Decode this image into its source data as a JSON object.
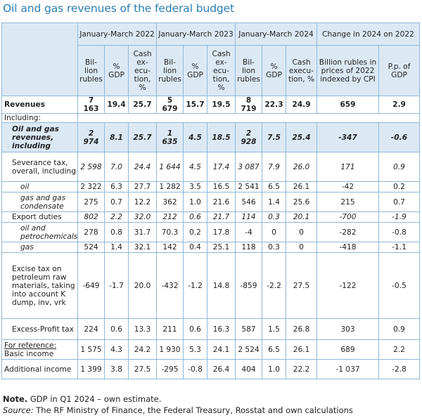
{
  "title": "Oil and gas revenues of the federal budget",
  "header": {
    "periods": [
      "January-March 2022",
      "January-March 2023",
      "January-March 2024"
    ],
    "change": "Change in 2024 on 2022",
    "sub": [
      "Bil-lion rubles",
      "% GDP",
      "Cash ex-ecu-tion, %",
      "Bil-lion rubles",
      "% GDP",
      "Cash ex-ecu-tion, %",
      "Bil-lion rubles",
      "% GDP",
      "Cash execu-tion, %",
      "Billion rubles in prices of 2022 indexed by CPI",
      "P.p. of GDP"
    ]
  },
  "rows": [
    {
      "label": "Revenues",
      "values": [
        "7 163",
        "19.4",
        "25.7",
        "5 679",
        "15.7",
        "19.5",
        "8 719",
        "22.3",
        "24.9",
        "659",
        "2.9"
      ]
    },
    {
      "label": "Including:",
      "values": []
    },
    {
      "label": "Oil and gas revenues, including",
      "values": [
        "2 974",
        "8.1",
        "25.7",
        "1 635",
        "4.5",
        "18.5",
        "2 928",
        "7.5",
        "25.4",
        "-347",
        "-0.6"
      ]
    },
    {
      "label": "Severance tax, overall, including",
      "values": [
        "2 598",
        "7.0",
        "24.4",
        "1 644",
        "4.5",
        "17.4",
        "3 087",
        "7.9",
        "26.0",
        "171",
        "0.9"
      ]
    },
    {
      "label": "oil",
      "values": [
        "2 322",
        "6.3",
        "27.7",
        "1 282",
        "3.5",
        "16.5",
        "2 541",
        "6.5",
        "26.1",
        "-42",
        "0.2"
      ]
    },
    {
      "label": "gas and gas condensate",
      "values": [
        "275",
        "0.7",
        "12.2",
        "362",
        "1.0",
        "21.6",
        "546",
        "1.4",
        "25.6",
        "215",
        "0.7"
      ]
    },
    {
      "label": "Export duties",
      "values": [
        "802",
        "2.2",
        "32.0",
        "212",
        "0.6",
        "21.7",
        "114",
        "0.3",
        "20.1",
        "-700",
        "-1.9"
      ]
    },
    {
      "label": "oil and petrochemicals",
      "values": [
        "278",
        "0.8",
        "31.7",
        "70.3",
        "0.2",
        "17.8",
        "-4",
        "0",
        "0",
        "-282",
        "-0.8"
      ]
    },
    {
      "label": "gas",
      "values": [
        "524",
        "1.4",
        "32.1",
        "142",
        "0.4",
        "25.1",
        "118",
        "0.3",
        "0",
        "-418",
        "-1.1"
      ]
    },
    {
      "label": "Excise tax on petroleum raw materials, taking into account K dump, inv, vrk",
      "values": [
        "-649",
        "-1.7",
        "20.0",
        "-432",
        "-1.2",
        "14.8",
        "-859",
        "-2.2",
        "27.5",
        "-122",
        "-0.5"
      ]
    },
    {
      "label": "Excess-Profit tax",
      "values": [
        "224",
        "0.6",
        "13.3",
        "211",
        "0.6",
        "16.3",
        "587",
        "1.5",
        "26.8",
        "303",
        "0.9"
      ]
    },
    {
      "label": "For reference:",
      "label2": "Basic income",
      "values": [
        "1 575",
        "4.3",
        "24.2",
        "1 930",
        "5.3",
        "24.1",
        "2 524",
        "6.5",
        "26.1",
        "689",
        "2.2"
      ]
    },
    {
      "label": "Additional income",
      "values": [
        "1 399",
        "3.8",
        "27.5",
        "-295",
        "-0.8",
        "26.4",
        "404",
        "1.0",
        "22.2",
        "-1 037",
        "-2.8"
      ]
    }
  ],
  "note_label": "Note.",
  "note_text": "GDP in Q1 2024 – own estimate.",
  "source_label": "Source:",
  "source_text": "The RF Ministry of Finance, the Federal Treasury, Rosstat and own calculations"
}
